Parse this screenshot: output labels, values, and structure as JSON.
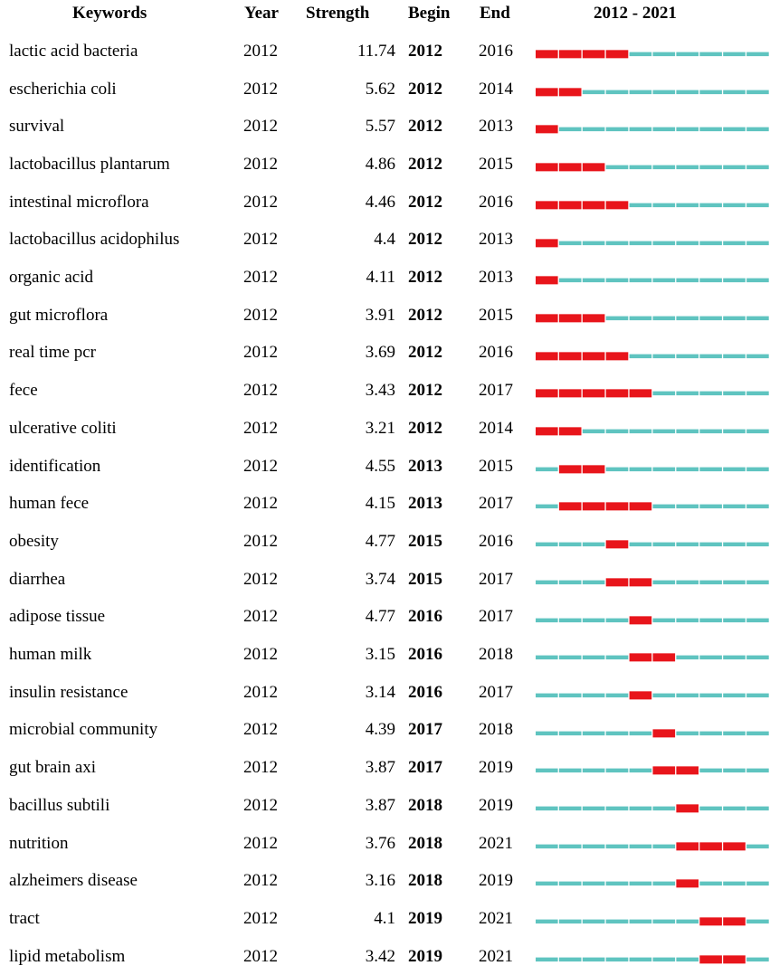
{
  "header": {
    "keywords": "Keywords",
    "year": "Year",
    "strength": "Strength",
    "begin": "Begin",
    "end": "End",
    "range": "2012 - 2021"
  },
  "colors": {
    "burst": "#e8151b",
    "base": "#5fc4c0"
  },
  "chart_data": {
    "type": "table",
    "timeline_start": 2012,
    "timeline_end": 2021,
    "columns": [
      "Keywords",
      "Year",
      "Strength",
      "Begin",
      "End",
      "2012 - 2021"
    ],
    "rows": [
      {
        "keyword": "lactic acid bacteria",
        "year": "2012",
        "strength": "11.74",
        "begin": "2012",
        "end": "2016"
      },
      {
        "keyword": "escherichia coli",
        "year": "2012",
        "strength": "5.62",
        "begin": "2012",
        "end": "2014"
      },
      {
        "keyword": "survival",
        "year": "2012",
        "strength": "5.57",
        "begin": "2012",
        "end": "2013"
      },
      {
        "keyword": "lactobacillus plantarum",
        "year": "2012",
        "strength": "4.86",
        "begin": "2012",
        "end": "2015"
      },
      {
        "keyword": "intestinal microflora",
        "year": "2012",
        "strength": "4.46",
        "begin": "2012",
        "end": "2016"
      },
      {
        "keyword": "lactobacillus acidophilus",
        "year": "2012",
        "strength": "4.4",
        "begin": "2012",
        "end": "2013"
      },
      {
        "keyword": "organic acid",
        "year": "2012",
        "strength": "4.11",
        "begin": "2012",
        "end": "2013"
      },
      {
        "keyword": "gut microflora",
        "year": "2012",
        "strength": "3.91",
        "begin": "2012",
        "end": "2015"
      },
      {
        "keyword": "real time pcr",
        "year": "2012",
        "strength": "3.69",
        "begin": "2012",
        "end": "2016"
      },
      {
        "keyword": "fece",
        "year": "2012",
        "strength": "3.43",
        "begin": "2012",
        "end": "2017"
      },
      {
        "keyword": "ulcerative coliti",
        "year": "2012",
        "strength": "3.21",
        "begin": "2012",
        "end": "2014"
      },
      {
        "keyword": "identification",
        "year": "2012",
        "strength": "4.55",
        "begin": "2013",
        "end": "2015"
      },
      {
        "keyword": "human fece",
        "year": "2012",
        "strength": "4.15",
        "begin": "2013",
        "end": "2017"
      },
      {
        "keyword": "obesity",
        "year": "2012",
        "strength": "4.77",
        "begin": "2015",
        "end": "2016"
      },
      {
        "keyword": "diarrhea",
        "year": "2012",
        "strength": "3.74",
        "begin": "2015",
        "end": "2017"
      },
      {
        "keyword": "adipose tissue",
        "year": "2012",
        "strength": "4.77",
        "begin": "2016",
        "end": "2017"
      },
      {
        "keyword": "human milk",
        "year": "2012",
        "strength": "3.15",
        "begin": "2016",
        "end": "2018"
      },
      {
        "keyword": "insulin resistance",
        "year": "2012",
        "strength": "3.14",
        "begin": "2016",
        "end": "2017"
      },
      {
        "keyword": "microbial community",
        "year": "2012",
        "strength": "4.39",
        "begin": "2017",
        "end": "2018"
      },
      {
        "keyword": "gut brain axi",
        "year": "2012",
        "strength": "3.87",
        "begin": "2017",
        "end": "2019"
      },
      {
        "keyword": "bacillus subtili",
        "year": "2012",
        "strength": "3.87",
        "begin": "2018",
        "end": "2019"
      },
      {
        "keyword": "nutrition",
        "year": "2012",
        "strength": "3.76",
        "begin": "2018",
        "end": "2021"
      },
      {
        "keyword": "alzheimers disease",
        "year": "2012",
        "strength": "3.16",
        "begin": "2018",
        "end": "2019"
      },
      {
        "keyword": "tract",
        "year": "2012",
        "strength": "4.1",
        "begin": "2019",
        "end": "2021"
      },
      {
        "keyword": "lipid metabolism",
        "year": "2012",
        "strength": "3.42",
        "begin": "2019",
        "end": "2021"
      }
    ]
  }
}
